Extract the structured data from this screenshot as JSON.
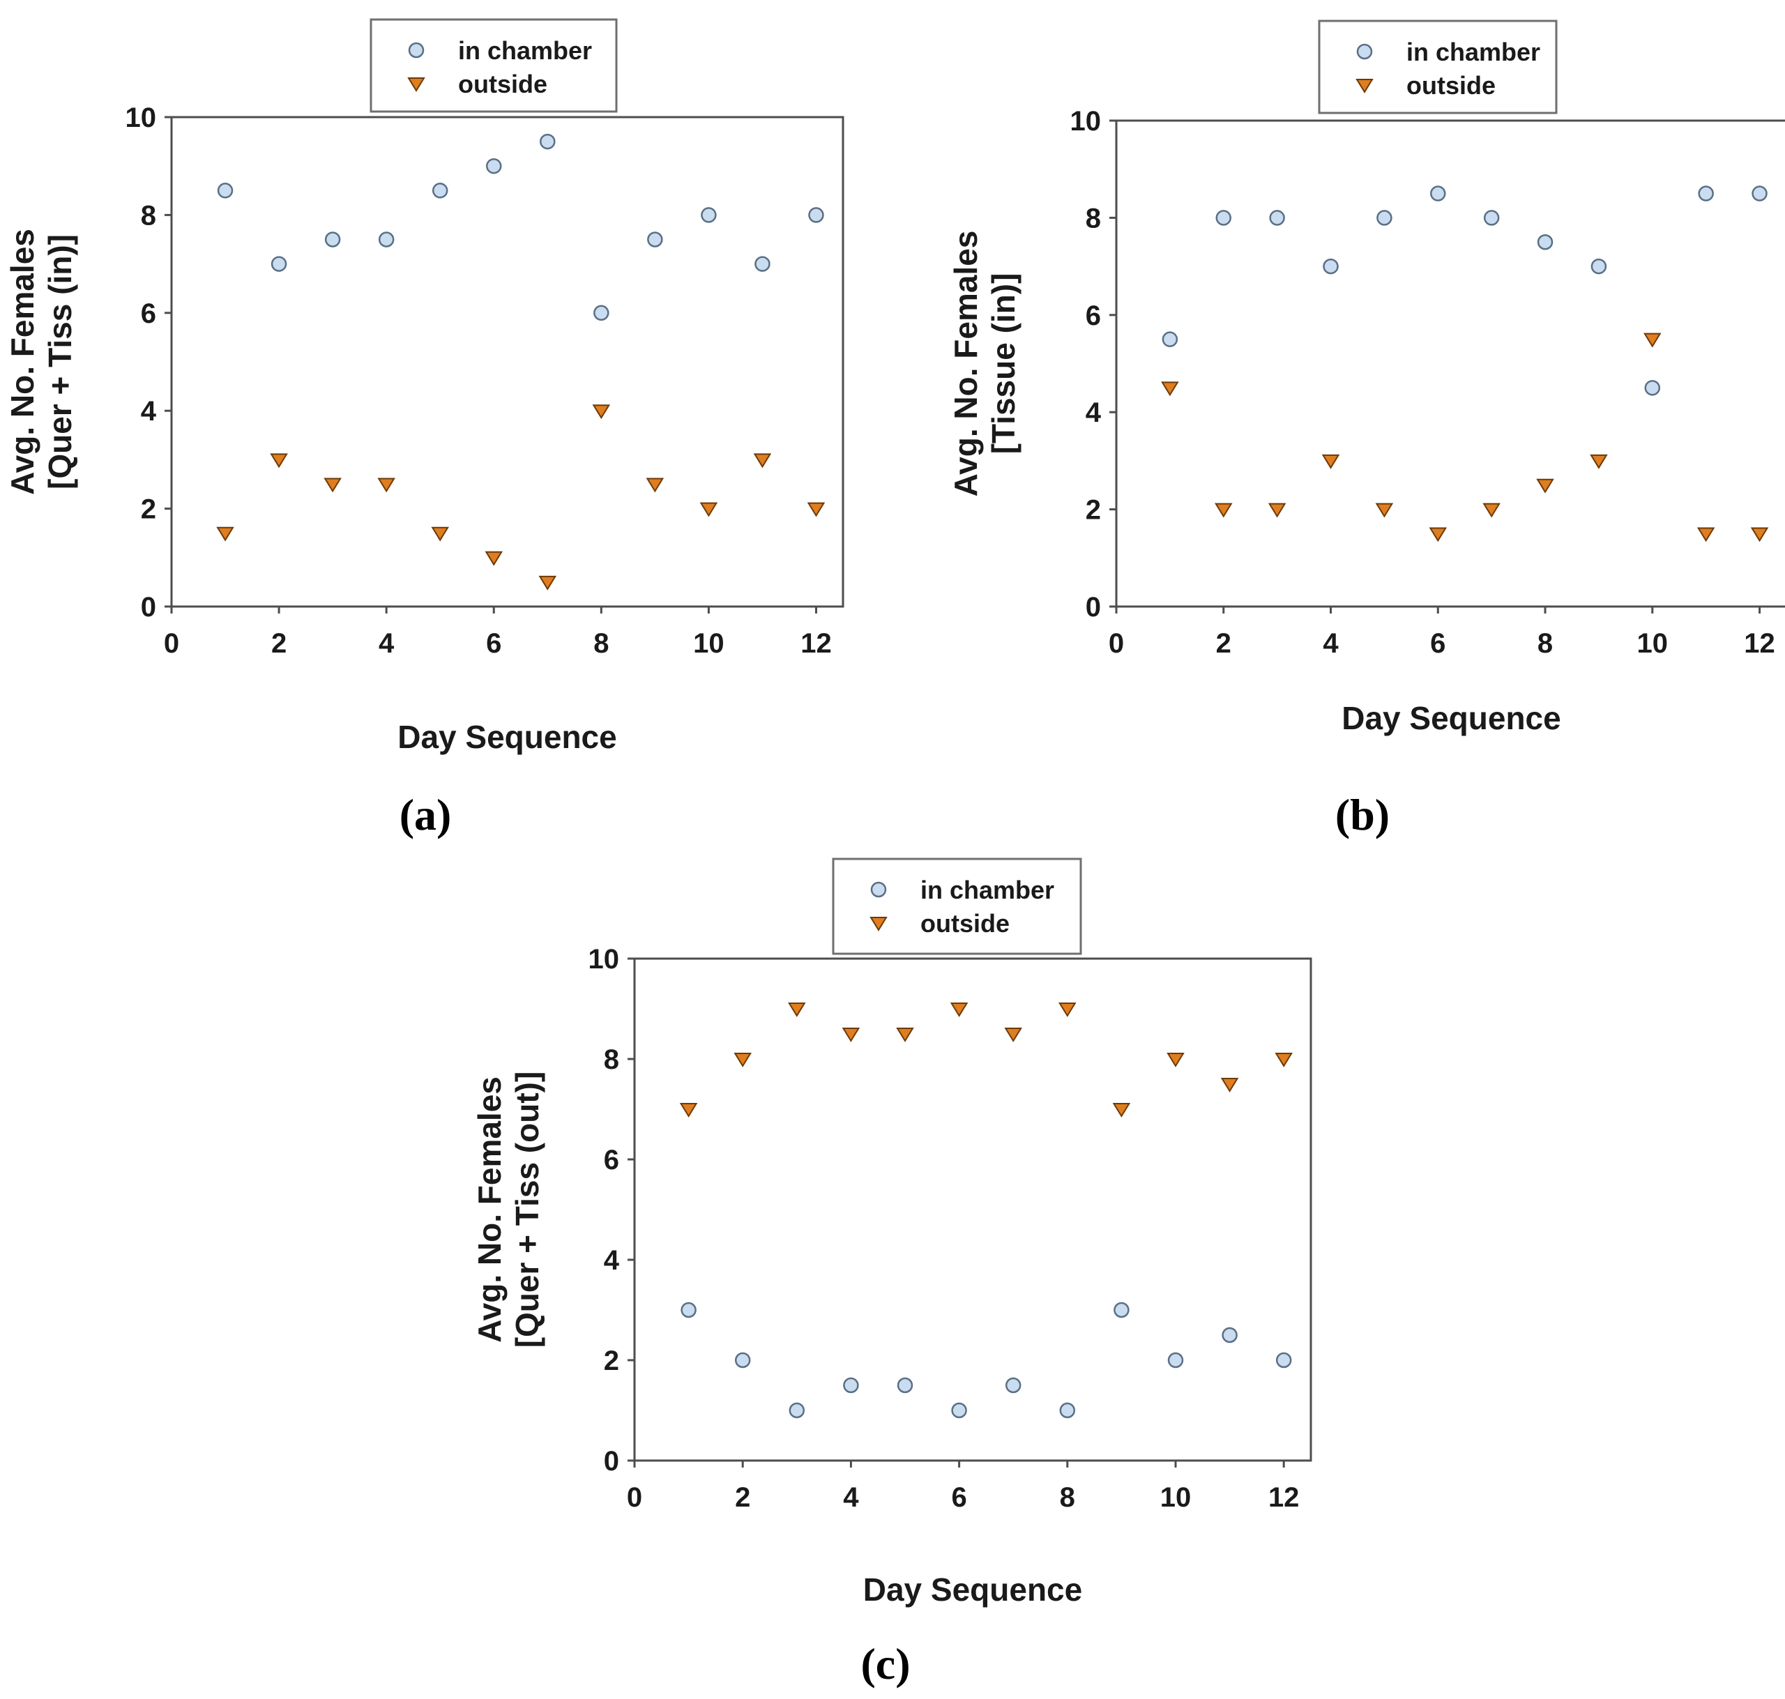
{
  "chart_data": [
    {
      "type": "scatter",
      "panel_label": "(a)",
      "xlabel": "Day Sequence",
      "ylabel_line1": "Avg. No. Females",
      "ylabel_line2": "[Quer + Tiss (in)]",
      "xlim": [
        0,
        12.5
      ],
      "ylim": [
        0,
        10
      ],
      "x_ticks": [
        "0",
        "2",
        "4",
        "6",
        "8",
        "10",
        "12"
      ],
      "y_ticks": [
        "0",
        "2",
        "4",
        "6",
        "8",
        "10"
      ],
      "legend_position": "top-center",
      "series": [
        {
          "name": "in chamber",
          "marker": "circle",
          "color": "#c9dcf0",
          "x": [
            1,
            2,
            3,
            4,
            5,
            6,
            7,
            8,
            9,
            10,
            11,
            12
          ],
          "y": [
            8.5,
            7,
            7.5,
            7.5,
            8.5,
            9,
            9.5,
            6,
            7.5,
            8,
            7,
            8
          ]
        },
        {
          "name": "outside",
          "marker": "triangle-down",
          "color": "#e07d1e",
          "x": [
            1,
            2,
            3,
            4,
            5,
            6,
            7,
            8,
            9,
            10,
            11,
            12
          ],
          "y": [
            1.5,
            3,
            2.5,
            2.5,
            1.5,
            1,
            0.5,
            4,
            2.5,
            2,
            3,
            2
          ]
        }
      ]
    },
    {
      "type": "scatter",
      "panel_label": "(b)",
      "xlabel": "Day Sequence",
      "ylabel_line1": "Avg. No. Females",
      "ylabel_line2": "[Tissue (in)]",
      "xlim": [
        0,
        12.5
      ],
      "ylim": [
        0,
        10
      ],
      "x_ticks": [
        "0",
        "2",
        "4",
        "6",
        "8",
        "10",
        "12"
      ],
      "y_ticks": [
        "0",
        "2",
        "4",
        "6",
        "8",
        "10"
      ],
      "legend_position": "top-center",
      "series": [
        {
          "name": "in chamber",
          "marker": "circle",
          "color": "#c9dcf0",
          "x": [
            1,
            2,
            3,
            4,
            5,
            6,
            7,
            8,
            9,
            10,
            11,
            12
          ],
          "y": [
            5.5,
            8,
            8,
            7,
            8,
            8.5,
            8,
            7.5,
            7,
            4.5,
            8.5,
            8.5
          ]
        },
        {
          "name": "outside",
          "marker": "triangle-down",
          "color": "#e07d1e",
          "x": [
            1,
            2,
            3,
            4,
            5,
            6,
            7,
            8,
            9,
            10,
            11,
            12
          ],
          "y": [
            4.5,
            2,
            2,
            3,
            2,
            1.5,
            2,
            2.5,
            3,
            5.5,
            1.5,
            1.5
          ]
        }
      ]
    },
    {
      "type": "scatter",
      "panel_label": "(c)",
      "xlabel": "Day Sequence",
      "ylabel_line1": "Avg. No. Females",
      "ylabel_line2": "[Quer + Tiss (out)]",
      "xlim": [
        0,
        12.5
      ],
      "ylim": [
        0,
        10
      ],
      "x_ticks": [
        "0",
        "2",
        "4",
        "6",
        "8",
        "10",
        "12"
      ],
      "y_ticks": [
        "0",
        "2",
        "4",
        "6",
        "8",
        "10"
      ],
      "legend_position": "top-center",
      "series": [
        {
          "name": "in chamber",
          "marker": "circle",
          "color": "#c9dcf0",
          "x": [
            1,
            2,
            3,
            4,
            5,
            6,
            7,
            8,
            9,
            10,
            11,
            12
          ],
          "y": [
            3,
            2,
            1,
            1.5,
            1.5,
            1,
            1.5,
            1,
            3,
            2,
            2.5,
            2
          ]
        },
        {
          "name": "outside",
          "marker": "triangle-down",
          "color": "#e07d1e",
          "x": [
            1,
            2,
            3,
            4,
            5,
            6,
            7,
            8,
            9,
            10,
            11,
            12
          ],
          "y": [
            7,
            8,
            9,
            8.5,
            8.5,
            9,
            8.5,
            9,
            7,
            8,
            7.5,
            8
          ]
        }
      ]
    }
  ]
}
